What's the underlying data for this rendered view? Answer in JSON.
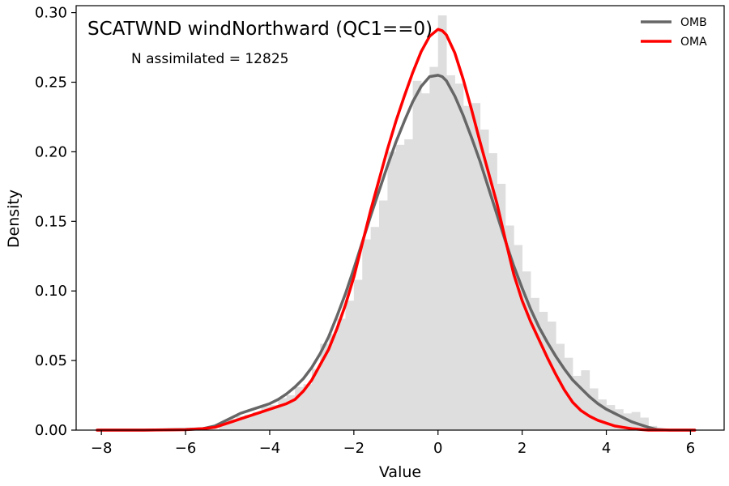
{
  "chart_data": {
    "type": "area",
    "title": "SCATWND windNorthward (QC1==0)",
    "annotation": "N assimilated = 12825",
    "xlabel": "Value",
    "ylabel": "Density",
    "xlim": [
      -8.6,
      6.8
    ],
    "ylim": [
      0,
      0.305
    ],
    "x_ticks": [
      -8,
      -6,
      -4,
      -2,
      0,
      2,
      4,
      6
    ],
    "x_tick_labels": [
      "−8",
      "−6",
      "−4",
      "−2",
      "0",
      "2",
      "4",
      "6"
    ],
    "y_ticks": [
      0.0,
      0.05,
      0.1,
      0.15,
      0.2,
      0.25,
      0.3
    ],
    "y_tick_labels": [
      "0.00",
      "0.05",
      "0.10",
      "0.15",
      "0.20",
      "0.25",
      "0.30"
    ],
    "grid": false,
    "legend_position": "top-right",
    "histogram": {
      "color": "#dedede",
      "bins": [
        {
          "x0": -5.2,
          "x1": -5.0,
          "y": 0.004
        },
        {
          "x0": -5.0,
          "x1": -4.8,
          "y": 0.008
        },
        {
          "x0": -4.8,
          "x1": -4.6,
          "y": 0.01
        },
        {
          "x0": -4.6,
          "x1": -4.4,
          "y": 0.011
        },
        {
          "x0": -4.4,
          "x1": -4.2,
          "y": 0.013
        },
        {
          "x0": -4.2,
          "x1": -4.0,
          "y": 0.017
        },
        {
          "x0": -4.0,
          "x1": -3.8,
          "y": 0.018
        },
        {
          "x0": -3.8,
          "x1": -3.6,
          "y": 0.023
        },
        {
          "x0": -3.6,
          "x1": -3.4,
          "y": 0.025
        },
        {
          "x0": -3.4,
          "x1": -3.2,
          "y": 0.031
        },
        {
          "x0": -3.2,
          "x1": -3.0,
          "y": 0.033
        },
        {
          "x0": -3.0,
          "x1": -2.8,
          "y": 0.044
        },
        {
          "x0": -2.8,
          "x1": -2.6,
          "y": 0.062
        },
        {
          "x0": -2.6,
          "x1": -2.4,
          "y": 0.069
        },
        {
          "x0": -2.4,
          "x1": -2.2,
          "y": 0.08
        },
        {
          "x0": -2.2,
          "x1": -2.0,
          "y": 0.093
        },
        {
          "x0": -2.0,
          "x1": -1.8,
          "y": 0.108
        },
        {
          "x0": -1.8,
          "x1": -1.6,
          "y": 0.137
        },
        {
          "x0": -1.6,
          "x1": -1.4,
          "y": 0.146
        },
        {
          "x0": -1.4,
          "x1": -1.2,
          "y": 0.165
        },
        {
          "x0": -1.2,
          "x1": -1.0,
          "y": 0.2
        },
        {
          "x0": -1.0,
          "x1": -0.8,
          "y": 0.205
        },
        {
          "x0": -0.8,
          "x1": -0.6,
          "y": 0.209
        },
        {
          "x0": -0.6,
          "x1": -0.4,
          "y": 0.251
        },
        {
          "x0": -0.4,
          "x1": -0.2,
          "y": 0.242
        },
        {
          "x0": -0.2,
          "x1": 0.0,
          "y": 0.261
        },
        {
          "x0": 0.0,
          "x1": 0.2,
          "y": 0.298
        },
        {
          "x0": 0.2,
          "x1": 0.4,
          "y": 0.255
        },
        {
          "x0": 0.4,
          "x1": 0.6,
          "y": 0.249
        },
        {
          "x0": 0.6,
          "x1": 0.8,
          "y": 0.233
        },
        {
          "x0": 0.8,
          "x1": 1.0,
          "y": 0.235
        },
        {
          "x0": 1.0,
          "x1": 1.2,
          "y": 0.216
        },
        {
          "x0": 1.2,
          "x1": 1.4,
          "y": 0.199
        },
        {
          "x0": 1.4,
          "x1": 1.6,
          "y": 0.177
        },
        {
          "x0": 1.6,
          "x1": 1.8,
          "y": 0.147
        },
        {
          "x0": 1.8,
          "x1": 2.0,
          "y": 0.133
        },
        {
          "x0": 2.0,
          "x1": 2.2,
          "y": 0.114
        },
        {
          "x0": 2.2,
          "x1": 2.4,
          "y": 0.095
        },
        {
          "x0": 2.4,
          "x1": 2.6,
          "y": 0.085
        },
        {
          "x0": 2.6,
          "x1": 2.8,
          "y": 0.078
        },
        {
          "x0": 2.8,
          "x1": 3.0,
          "y": 0.062
        },
        {
          "x0": 3.0,
          "x1": 3.2,
          "y": 0.052
        },
        {
          "x0": 3.2,
          "x1": 3.4,
          "y": 0.039
        },
        {
          "x0": 3.4,
          "x1": 3.6,
          "y": 0.043
        },
        {
          "x0": 3.6,
          "x1": 3.8,
          "y": 0.03
        },
        {
          "x0": 3.8,
          "x1": 4.0,
          "y": 0.022
        },
        {
          "x0": 4.0,
          "x1": 4.2,
          "y": 0.018
        },
        {
          "x0": 4.2,
          "x1": 4.4,
          "y": 0.015
        },
        {
          "x0": 4.4,
          "x1": 4.6,
          "y": 0.012
        },
        {
          "x0": 4.6,
          "x1": 4.8,
          "y": 0.013
        },
        {
          "x0": 4.8,
          "x1": 5.0,
          "y": 0.009
        },
        {
          "x0": 5.0,
          "x1": 5.2,
          "y": 0.003
        }
      ]
    },
    "series": [
      {
        "name": "OMB",
        "color": "#666666",
        "x": [
          -8.1,
          -7.0,
          -6.0,
          -5.6,
          -5.3,
          -5.1,
          -4.9,
          -4.7,
          -4.5,
          -4.2,
          -4.0,
          -3.8,
          -3.6,
          -3.4,
          -3.2,
          -3.0,
          -2.8,
          -2.6,
          -2.4,
          -2.2,
          -2.0,
          -1.8,
          -1.6,
          -1.4,
          -1.2,
          -1.0,
          -0.8,
          -0.6,
          -0.4,
          -0.2,
          0.0,
          0.1,
          0.2,
          0.4,
          0.6,
          0.8,
          1.0,
          1.2,
          1.4,
          1.6,
          1.8,
          2.0,
          2.2,
          2.4,
          2.6,
          2.8,
          3.0,
          3.2,
          3.4,
          3.6,
          3.8,
          4.0,
          4.2,
          4.4,
          4.6,
          4.8,
          5.0,
          5.2,
          5.5,
          6.1
        ],
        "y": [
          0.0,
          0.0,
          0.0005,
          0.001,
          0.003,
          0.006,
          0.009,
          0.012,
          0.014,
          0.017,
          0.019,
          0.022,
          0.026,
          0.031,
          0.037,
          0.045,
          0.055,
          0.067,
          0.082,
          0.098,
          0.116,
          0.135,
          0.154,
          0.172,
          0.19,
          0.207,
          0.222,
          0.236,
          0.247,
          0.254,
          0.255,
          0.254,
          0.251,
          0.24,
          0.226,
          0.21,
          0.193,
          0.174,
          0.155,
          0.136,
          0.118,
          0.102,
          0.087,
          0.074,
          0.063,
          0.053,
          0.044,
          0.036,
          0.03,
          0.024,
          0.019,
          0.015,
          0.012,
          0.009,
          0.006,
          0.004,
          0.002,
          0.0005,
          0.0,
          0.0
        ]
      },
      {
        "name": "OMA",
        "color": "#ff0000",
        "x": [
          -8.1,
          -7.0,
          -6.0,
          -5.6,
          -5.3,
          -5.1,
          -4.9,
          -4.7,
          -4.5,
          -4.2,
          -4.0,
          -3.8,
          -3.6,
          -3.4,
          -3.2,
          -3.0,
          -2.8,
          -2.6,
          -2.4,
          -2.2,
          -2.0,
          -1.8,
          -1.6,
          -1.4,
          -1.2,
          -1.0,
          -0.8,
          -0.6,
          -0.4,
          -0.2,
          0.0,
          0.1,
          0.2,
          0.4,
          0.6,
          0.8,
          1.0,
          1.2,
          1.4,
          1.6,
          1.8,
          2.0,
          2.2,
          2.4,
          2.6,
          2.8,
          3.0,
          3.2,
          3.4,
          3.6,
          3.8,
          4.0,
          4.2,
          4.4,
          4.6,
          4.8,
          5.0,
          5.2,
          5.5,
          6.1
        ],
        "y": [
          0.0,
          0.0,
          0.0003,
          0.001,
          0.002,
          0.004,
          0.006,
          0.008,
          0.01,
          0.013,
          0.015,
          0.017,
          0.019,
          0.022,
          0.028,
          0.036,
          0.047,
          0.058,
          0.073,
          0.09,
          0.11,
          0.134,
          0.158,
          0.18,
          0.202,
          0.222,
          0.24,
          0.257,
          0.272,
          0.283,
          0.288,
          0.287,
          0.284,
          0.271,
          0.252,
          0.23,
          0.207,
          0.185,
          0.163,
          0.137,
          0.112,
          0.093,
          0.078,
          0.065,
          0.052,
          0.04,
          0.029,
          0.02,
          0.014,
          0.01,
          0.007,
          0.005,
          0.003,
          0.002,
          0.001,
          0.0005,
          0.0,
          0.0,
          0.0,
          0.0
        ]
      }
    ]
  }
}
